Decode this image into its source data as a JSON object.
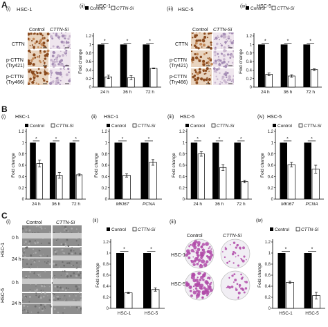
{
  "rows": {
    "A": {
      "letter": "A",
      "i": {
        "tag": "(i)",
        "title": "HSC-1",
        "control": "Control",
        "si": "CTTN-Si",
        "rows": [
          "CTTN",
          "p-CTTN\n(Try421)",
          "p-CTTN\n(Try466)"
        ]
      },
      "iii": {
        "tag": "(iii)",
        "title": "HSC-5",
        "control": "Control",
        "si": "CTTN-Si",
        "rows": [
          "CTTN",
          "p-CTTN\n(Try421)",
          "p-CTTN\n(Try466)"
        ]
      }
    },
    "C": {
      "letter": "C",
      "i": {
        "tag": "(i)",
        "control": "Control",
        "si": "CTTN-Si",
        "labels": [
          "0 h",
          "24 h",
          "0 h",
          "24 h"
        ],
        "groups": [
          "HSC-1",
          "HSC-5"
        ]
      },
      "iii": {
        "tag": "(iii)",
        "control": "Control",
        "si": "CTTN-Si",
        "groups": [
          "HSC-1",
          "HSC-5"
        ]
      }
    },
    "B": {
      "letter": "B"
    }
  },
  "legend": {
    "control": "Control",
    "si": "CTTN-Si"
  },
  "colors": {
    "control": "#000000",
    "si": "#ffffff",
    "stain_dark": "#8a4a1e",
    "stain_light": "#e6d3c8",
    "crystal": "#b04aa8"
  },
  "chart_data": [
    {
      "id": "A-ii",
      "tag": "(ii)",
      "title": "HSC-1",
      "type": "bar",
      "ylabel": "Fold change",
      "ylim": [
        0,
        1.2
      ],
      "yticks": [
        "0",
        "0.2",
        "0.4",
        "0.6",
        "0.8",
        "1",
        "1.2"
      ],
      "categories": [
        "24 h",
        "36 h",
        "72 h"
      ],
      "series": [
        {
          "name": "Control",
          "values": [
            1,
            1,
            1
          ]
        },
        {
          "name": "CTTN-Si",
          "values": [
            0.24,
            0.22,
            0.44
          ],
          "errors": [
            0.04,
            0.05,
            0.01
          ]
        }
      ],
      "sig": [
        "*",
        "*",
        "*"
      ]
    },
    {
      "id": "A-iv",
      "tag": "(iv)",
      "title": "HSC-5",
      "type": "bar",
      "ylabel": "Fold change",
      "ylim": [
        0,
        1.2
      ],
      "yticks": [
        "0",
        "0.2",
        "0.4",
        "0.6",
        "0.8",
        "1",
        "1.2"
      ],
      "categories": [
        "24 h",
        "36 h",
        "72 h"
      ],
      "series": [
        {
          "name": "Control",
          "values": [
            1,
            1,
            1
          ]
        },
        {
          "name": "CTTN-Si",
          "values": [
            0.3,
            0.26,
            0.41
          ],
          "errors": [
            0.03,
            0.03,
            0.02
          ]
        }
      ],
      "sig": [
        "*",
        "*",
        "*"
      ]
    },
    {
      "id": "B-i",
      "tag": "(i)",
      "title": "HSC-1",
      "type": "bar",
      "ylabel": "Fold change",
      "ylim": [
        0,
        1.2
      ],
      "yticks": [
        "0",
        "0.2",
        "0.4",
        "0.6",
        "0.8",
        "1",
        "1.2"
      ],
      "categories": [
        "24 h",
        "36 h",
        "72 h"
      ],
      "series": [
        {
          "name": "Control",
          "values": [
            1,
            1,
            1
          ]
        },
        {
          "name": "CTTN-Si",
          "values": [
            0.63,
            0.42,
            0.43
          ],
          "errors": [
            0.06,
            0.05,
            0.02
          ]
        }
      ],
      "sig": [
        "*",
        "*",
        "*"
      ]
    },
    {
      "id": "B-ii",
      "tag": "(ii)",
      "title": "HSC-1",
      "type": "bar",
      "ylabel": "Fold change",
      "ylim": [
        0,
        1.2
      ],
      "yticks": [
        "0",
        "0.2",
        "0.4",
        "0.6",
        "0.8",
        "1",
        "1.2"
      ],
      "categories": [
        "MKI67",
        "PCNA"
      ],
      "italic_categories": true,
      "series": [
        {
          "name": "Control",
          "values": [
            1,
            1
          ]
        },
        {
          "name": "CTTN-Si",
          "values": [
            0.42,
            0.65
          ],
          "errors": [
            0.03,
            0.05
          ]
        }
      ],
      "sig": [
        "*",
        "*"
      ]
    },
    {
      "id": "B-iii",
      "tag": "(iii)",
      "title": "HSC-5",
      "type": "bar",
      "ylabel": "Fold change",
      "ylim": [
        0,
        1.2
      ],
      "yticks": [
        "0",
        "0.2",
        "0.4",
        "0.6",
        "0.8",
        "1",
        "1.2"
      ],
      "categories": [
        "24 h",
        "36 h",
        "72 h"
      ],
      "series": [
        {
          "name": "Control",
          "values": [
            1,
            1,
            1
          ]
        },
        {
          "name": "CTTN-Si",
          "values": [
            0.8,
            0.56,
            0.31
          ],
          "errors": [
            0.04,
            0.05,
            0.02
          ]
        }
      ],
      "sig": [
        "*",
        "*",
        "*"
      ]
    },
    {
      "id": "B-iv",
      "tag": "(iv)",
      "title": "HSC-5",
      "type": "bar",
      "ylabel": "Fold change",
      "ylim": [
        0,
        1.2
      ],
      "yticks": [
        "0",
        "0.2",
        "0.4",
        "0.6",
        "0.8",
        "1",
        "1.2"
      ],
      "categories": [
        "MKI67",
        "PCNA"
      ],
      "italic_categories": true,
      "series": [
        {
          "name": "Control",
          "values": [
            1,
            1
          ]
        },
        {
          "name": "CTTN-Si",
          "values": [
            0.61,
            0.53
          ],
          "errors": [
            0.04,
            0.07
          ]
        }
      ],
      "sig": [
        "*",
        "*"
      ]
    },
    {
      "id": "C-ii",
      "tag": "(ii)",
      "title": "",
      "type": "bar",
      "ylabel": "Fold change",
      "ylim": [
        0,
        1.2
      ],
      "yticks": [
        "0",
        "0.2",
        "0.4",
        "0.6",
        "0.8",
        "1",
        "1.2"
      ],
      "categories": [
        "HSC-1",
        "HSC-5"
      ],
      "series": [
        {
          "name": "Control",
          "values": [
            1,
            1
          ]
        },
        {
          "name": "CTTN-Si",
          "values": [
            0.28,
            0.34
          ],
          "errors": [
            0.01,
            0.03
          ]
        }
      ],
      "sig": [
        "*",
        "*"
      ]
    },
    {
      "id": "C-iv",
      "tag": "(iv)",
      "title": "",
      "type": "bar",
      "ylabel": "Fold change",
      "ylim": [
        0,
        1.2
      ],
      "yticks": [
        "0",
        "0.2",
        "0.4",
        "0.6",
        "0.8",
        "1",
        "1.2"
      ],
      "categories": [
        "HSC-1",
        "HSC-5"
      ],
      "series": [
        {
          "name": "Control",
          "values": [
            1,
            1
          ]
        },
        {
          "name": "CTTN-Si",
          "values": [
            0.47,
            0.23
          ],
          "errors": [
            0.02,
            0.06
          ]
        }
      ],
      "sig": [
        "*",
        "*"
      ]
    }
  ]
}
